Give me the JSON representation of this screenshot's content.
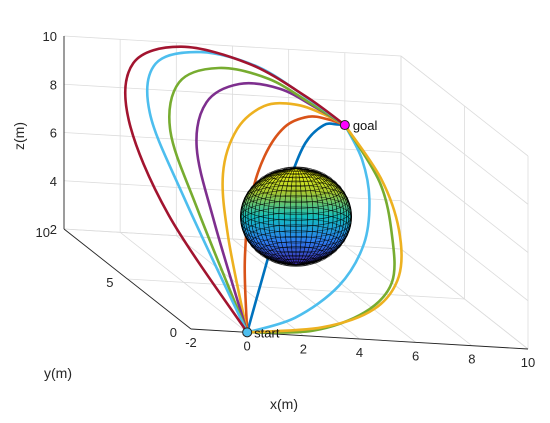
{
  "chart_data": {
    "type": "line",
    "title": "",
    "xlabel": "x(m)",
    "ylabel": "y(m)",
    "zlabel": "z(m)",
    "xlim": [
      -2,
      10
    ],
    "ylim": [
      0,
      10
    ],
    "zlim": [
      2,
      10
    ],
    "xticks": [
      "-2",
      "0",
      "2",
      "4",
      "6",
      "8",
      "10"
    ],
    "yticks": [
      "0",
      "5",
      "10"
    ],
    "zticks": [
      "2",
      "4",
      "6",
      "8",
      "10"
    ],
    "grid": true,
    "start": {
      "label": "start",
      "point": [
        0,
        0,
        2
      ],
      "color": "#4dbeee"
    },
    "goal": {
      "label": "goal",
      "point": [
        8,
        10,
        7
      ],
      "color": "#ff00ff"
    },
    "obstacle": {
      "shape": "sphere",
      "center": [
        4,
        5,
        5
      ],
      "radius": 2,
      "colormap": "parula"
    },
    "series": [
      {
        "color": "#0072bd",
        "points": [
          [
            0,
            0,
            2
          ],
          [
            1.5,
            2.2,
            3.3
          ],
          [
            3,
            4.3,
            4.8
          ],
          [
            4.4,
            6.3,
            6.1
          ],
          [
            5.6,
            7.8,
            7.0
          ],
          [
            6.7,
            8.8,
            7.4
          ],
          [
            7.5,
            9.5,
            7.2
          ],
          [
            8,
            10,
            7
          ]
        ]
      },
      {
        "color": "#d95319",
        "points": [
          [
            0,
            0,
            2
          ],
          [
            1,
            2.4,
            4.0
          ],
          [
            2.2,
            4.6,
            5.7
          ],
          [
            3.6,
            6.6,
            6.8
          ],
          [
            5,
            8.1,
            7.5
          ],
          [
            6.3,
            9.1,
            7.6
          ],
          [
            7.3,
            9.7,
            7.3
          ],
          [
            8,
            10,
            7
          ]
        ]
      },
      {
        "color": "#edb120",
        "points": [
          [
            0,
            0,
            2
          ],
          [
            0.5,
            2.6,
            4.9
          ],
          [
            1.4,
            5.0,
            6.6
          ],
          [
            2.8,
            7.0,
            7.7
          ],
          [
            4.4,
            8.4,
            8.2
          ],
          [
            5.9,
            9.3,
            8.0
          ],
          [
            7.1,
            9.8,
            7.5
          ],
          [
            8,
            10,
            7
          ]
        ]
      },
      {
        "color": "#7e2f8e",
        "points": [
          [
            0,
            0,
            2
          ],
          [
            0.1,
            2.8,
            5.4
          ],
          [
            0.6,
            5.3,
            7.5
          ],
          [
            1.9,
            7.4,
            8.6
          ],
          [
            3.7,
            8.8,
            8.9
          ],
          [
            5.5,
            9.6,
            8.5
          ],
          [
            6.9,
            9.9,
            7.7
          ],
          [
            8,
            10,
            7
          ]
        ]
      },
      {
        "color": "#77ac30",
        "points": [
          [
            0,
            0,
            2
          ],
          [
            -0.4,
            3.0,
            5.8
          ],
          [
            -0.2,
            5.6,
            8.0
          ],
          [
            1.1,
            7.8,
            9.2
          ],
          [
            3.1,
            9.1,
            9.4
          ],
          [
            5.2,
            9.8,
            8.8
          ],
          [
            6.8,
            10,
            7.8
          ],
          [
            8,
            10,
            7
          ]
        ]
      },
      {
        "color": "#4dbeee",
        "points": [
          [
            0,
            0,
            2
          ],
          [
            -0.8,
            3.2,
            6.2
          ],
          [
            -0.8,
            5.9,
            8.6
          ],
          [
            0.4,
            8.1,
            9.8
          ],
          [
            2.6,
            9.4,
            9.9
          ],
          [
            4.9,
            10,
            9.2
          ],
          [
            6.7,
            10,
            8.0
          ],
          [
            8,
            10,
            7
          ]
        ]
      },
      {
        "color": "#a2142f",
        "points": [
          [
            0,
            0,
            2
          ],
          [
            -1.3,
            3.3,
            5.4
          ],
          [
            -1.5,
            6.0,
            8.2
          ],
          [
            -0.3,
            8.3,
            9.7
          ],
          [
            2.0,
            9.6,
            10
          ],
          [
            4.6,
            10,
            9.3
          ],
          [
            6.6,
            10,
            8.1
          ],
          [
            8,
            10,
            7
          ]
        ]
      },
      {
        "color": "#4dbeee",
        "points": [
          [
            0,
            0,
            2
          ],
          [
            2.2,
            1.1,
            2.3
          ],
          [
            4.4,
            2.5,
            3.2
          ],
          [
            6.1,
            4.3,
            4.3
          ],
          [
            7.2,
            6.3,
            5.4
          ],
          [
            7.8,
            8.2,
            6.3
          ],
          [
            8,
            10,
            7
          ]
        ]
      },
      {
        "color": "#77ac30",
        "points": [
          [
            0,
            0,
            2
          ],
          [
            2.6,
            0.6,
            2.0
          ],
          [
            4.9,
            1.6,
            2.5
          ],
          [
            6.6,
            3.2,
            3.2
          ],
          [
            7.6,
            5.4,
            4.3
          ],
          [
            8.2,
            7.7,
            5.6
          ],
          [
            8,
            10,
            7
          ]
        ]
      },
      {
        "color": "#edb120",
        "points": [
          [
            0,
            0,
            2
          ],
          [
            2.9,
            0.5,
            2.2
          ],
          [
            5.2,
            1.5,
            2.7
          ],
          [
            6.8,
            3.1,
            3.5
          ],
          [
            7.8,
            5.3,
            4.6
          ],
          [
            8.2,
            7.6,
            5.8
          ],
          [
            8,
            10,
            7
          ]
        ]
      }
    ]
  }
}
